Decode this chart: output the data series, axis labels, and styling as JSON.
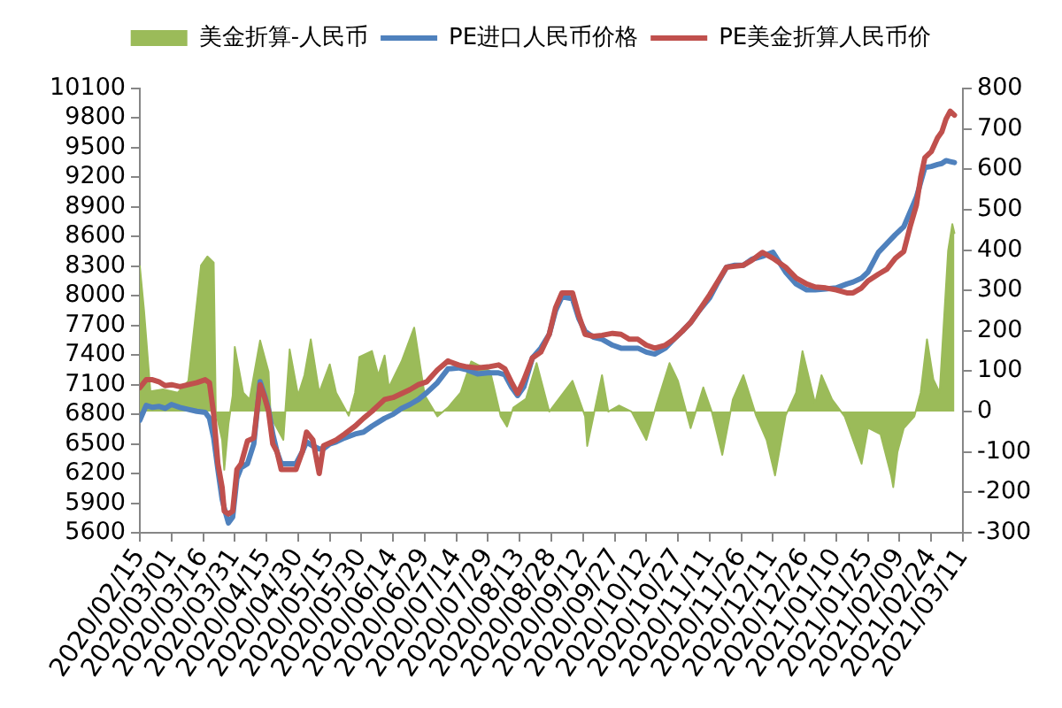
{
  "chart_data": {
    "type": "line",
    "legend": "top",
    "xlim": [
      "2020-02-15",
      "2021-03-11"
    ],
    "xticks": [
      {
        "value": "2020-02-15",
        "label": "2020/02/15"
      },
      {
        "value": "2020-03-01",
        "label": "2020/03/01"
      },
      {
        "value": "2020-03-16",
        "label": "2020/03/16"
      },
      {
        "value": "2020-03-31",
        "label": "2020/03/31"
      },
      {
        "value": "2020-04-15",
        "label": "2020/04/15"
      },
      {
        "value": "2020-04-30",
        "label": "2020/04/30"
      },
      {
        "value": "2020-05-15",
        "label": "2020/05/15"
      },
      {
        "value": "2020-05-30",
        "label": "2020/05/30"
      },
      {
        "value": "2020-06-14",
        "label": "2020/06/14"
      },
      {
        "value": "2020-06-29",
        "label": "2020/06/29"
      },
      {
        "value": "2020-07-14",
        "label": "2020/07/14"
      },
      {
        "value": "2020-07-29",
        "label": "2020/07/29"
      },
      {
        "value": "2020-08-13",
        "label": "2020/08/13"
      },
      {
        "value": "2020-08-28",
        "label": "2020/08/28"
      },
      {
        "value": "2020-09-12",
        "label": "2020/09/12"
      },
      {
        "value": "2020-09-27",
        "label": "2020/09/27"
      },
      {
        "value": "2020-10-12",
        "label": "2020/10/12"
      },
      {
        "value": "2020-10-27",
        "label": "2020/10/27"
      },
      {
        "value": "2020-11-11",
        "label": "2020/11/11"
      },
      {
        "value": "2020-11-26",
        "label": "2020/11/26"
      },
      {
        "value": "2020-12-11",
        "label": "2020/12/11"
      },
      {
        "value": "2020-12-26",
        "label": "2020/12/26"
      },
      {
        "value": "2021-01-10",
        "label": "2021/01/10"
      },
      {
        "value": "2021-01-25",
        "label": "2021/01/25"
      },
      {
        "value": "2021-02-09",
        "label": "2021/02/09"
      },
      {
        "value": "2021-02-24",
        "label": "2021/02/24"
      },
      {
        "value": "2021-03-11",
        "label": "2021/03/11"
      }
    ],
    "ylim": [
      5600,
      10100
    ],
    "yticks": [
      5600,
      5900,
      6200,
      6500,
      6800,
      7100,
      7400,
      7700,
      8000,
      8300,
      8600,
      8900,
      9200,
      9500,
      9800,
      10100
    ],
    "y2lim": [
      -300,
      800
    ],
    "y2ticks": [
      -300,
      -200,
      -100,
      0,
      100,
      200,
      300,
      400,
      500,
      600,
      700,
      800
    ],
    "x": [
      "2020-02-15",
      "2020-02-18",
      "2020-02-21",
      "2020-02-24",
      "2020-02-27",
      "2020-03-01",
      "2020-03-05",
      "2020-03-09",
      "2020-03-13",
      "2020-03-17",
      "2020-03-19",
      "2020-03-21",
      "2020-03-23",
      "2020-03-25",
      "2020-03-26",
      "2020-03-28",
      "2020-03-30",
      "2020-04-01",
      "2020-04-03",
      "2020-04-06",
      "2020-04-09",
      "2020-04-12",
      "2020-04-14",
      "2020-04-16",
      "2020-04-18",
      "2020-04-20",
      "2020-04-22",
      "2020-04-25",
      "2020-04-29",
      "2020-05-02",
      "2020-05-04",
      "2020-05-07",
      "2020-05-10",
      "2020-05-12",
      "2020-05-15",
      "2020-05-18",
      "2020-05-22",
      "2020-05-27",
      "2020-05-31",
      "2020-06-04",
      "2020-06-10",
      "2020-06-14",
      "2020-06-18",
      "2020-06-22",
      "2020-06-26",
      "2020-06-30",
      "2020-07-05",
      "2020-07-10",
      "2020-07-15",
      "2020-07-19",
      "2020-07-24",
      "2020-07-29",
      "2020-08-03",
      "2020-08-06",
      "2020-08-09",
      "2020-08-12",
      "2020-08-15",
      "2020-08-19",
      "2020-08-23",
      "2020-08-27",
      "2020-08-30",
      "2020-09-02",
      "2020-09-07",
      "2020-09-10",
      "2020-09-13",
      "2020-09-17",
      "2020-09-21",
      "2020-09-26",
      "2020-09-30",
      "2020-10-04",
      "2020-10-08",
      "2020-10-12",
      "2020-10-16",
      "2020-10-21",
      "2020-10-25",
      "2020-10-29",
      "2020-11-02",
      "2020-11-06",
      "2020-11-11",
      "2020-11-15",
      "2020-11-19",
      "2020-11-23",
      "2020-11-27",
      "2020-12-01",
      "2020-12-06",
      "2020-12-11",
      "2020-12-17",
      "2020-12-22",
      "2020-12-27",
      "2020-12-31",
      "2021-01-05",
      "2021-01-10",
      "2021-01-15",
      "2021-01-18",
      "2021-01-22",
      "2021-01-25",
      "2021-01-30",
      "2021-02-03",
      "2021-02-07",
      "2021-02-11",
      "2021-02-14",
      "2021-02-17",
      "2021-02-19",
      "2021-02-21",
      "2021-02-24",
      "2021-02-27",
      "2021-03-01",
      "2021-03-03",
      "2021-03-05",
      "2021-03-07"
    ],
    "series": [
      {
        "name": "美金折算-人民币",
        "type": "area",
        "axis": "y2",
        "color": "#9bbb59",
        "x": [
          "2020-02-15",
          "2020-02-17",
          "2020-02-20",
          "2020-02-26",
          "2020-03-04",
          "2020-03-09",
          "2020-03-15",
          "2020-03-18",
          "2020-03-21",
          "2020-03-22",
          "2020-03-25",
          "2020-03-26",
          "2020-03-28",
          "2020-03-30",
          "2020-03-31",
          "2020-04-04",
          "2020-04-07",
          "2020-04-12",
          "2020-04-16",
          "2020-04-17",
          "2020-04-20",
          "2020-04-23",
          "2020-04-26",
          "2020-04-30",
          "2020-05-03",
          "2020-05-06",
          "2020-05-10",
          "2020-05-15",
          "2020-05-18",
          "2020-05-24",
          "2020-05-27",
          "2020-05-29",
          "2020-06-04",
          "2020-06-07",
          "2020-06-10",
          "2020-06-12",
          "2020-06-18",
          "2020-06-24",
          "2020-06-29",
          "2020-07-05",
          "2020-07-10",
          "2020-07-16",
          "2020-07-21",
          "2020-07-30",
          "2020-08-04",
          "2020-08-07",
          "2020-08-10",
          "2020-08-16",
          "2020-08-21",
          "2020-08-27",
          "2020-09-07",
          "2020-09-13",
          "2020-09-14",
          "2020-09-21",
          "2020-09-24",
          "2020-09-29",
          "2020-10-05",
          "2020-10-12",
          "2020-10-17",
          "2020-10-23",
          "2020-10-27",
          "2020-11-02",
          "2020-11-08",
          "2020-11-12",
          "2020-11-17",
          "2020-11-22",
          "2020-11-27",
          "2020-12-03",
          "2020-12-08",
          "2020-12-12",
          "2020-12-17",
          "2020-12-22",
          "2020-12-25",
          "2020-12-31",
          "2021-01-03",
          "2021-01-08",
          "2021-01-14",
          "2021-01-19",
          "2021-01-22",
          "2021-01-25",
          "2021-01-31",
          "2021-02-05",
          "2021-02-06",
          "2021-02-08",
          "2021-02-11",
          "2021-02-16",
          "2021-02-19",
          "2021-02-22",
          "2021-02-25",
          "2021-02-28",
          "2021-03-04",
          "2021-03-06",
          "2021-03-07"
        ],
        "values": [
          360,
          250,
          50,
          55,
          47,
          76,
          362,
          384,
          369,
          0,
          -70,
          -144,
          -30,
          40,
          160,
          47,
          30,
          176,
          98,
          -12,
          -41,
          -70,
          154,
          40,
          90,
          179,
          47,
          117,
          47,
          -10,
          47,
          135,
          150,
          90,
          139,
          60,
          124,
          208,
          40,
          -12,
          10,
          47,
          124,
          100,
          -12,
          -37,
          10,
          32,
          120,
          0,
          76,
          -12,
          -85,
          90,
          0,
          15,
          0,
          -70,
          20,
          120,
          76,
          -41,
          60,
          0,
          -107,
          30,
          90,
          -10,
          -70,
          -158,
          -10,
          47,
          150,
          20,
          90,
          30,
          -12,
          -85,
          -129,
          -40,
          -56,
          -158,
          -187,
          -100,
          -41,
          -12,
          47,
          179,
          80,
          47,
          398,
          464,
          442
        ]
      },
      {
        "name": "PE进口人民币价格",
        "color": "#4f81bd",
        "values": [
          6740,
          6890,
          6870,
          6880,
          6860,
          6900,
          6870,
          6850,
          6830,
          6820,
          6760,
          6560,
          6240,
          5940,
          5850,
          5700,
          5760,
          6150,
          6260,
          6300,
          6500,
          7130,
          7000,
          6850,
          6600,
          6420,
          6300,
          6300,
          6300,
          6420,
          6520,
          6480,
          6450,
          6450,
          6500,
          6520,
          6560,
          6600,
          6620,
          6680,
          6760,
          6800,
          6860,
          6900,
          6950,
          7020,
          7120,
          7260,
          7270,
          7250,
          7210,
          7220,
          7220,
          7200,
          7080,
          6990,
          7080,
          7370,
          7470,
          7610,
          7850,
          7990,
          7970,
          7770,
          7640,
          7580,
          7560,
          7500,
          7470,
          7470,
          7470,
          7430,
          7410,
          7470,
          7560,
          7640,
          7730,
          7850,
          7980,
          8140,
          8290,
          8310,
          8310,
          8370,
          8400,
          8440,
          8240,
          8120,
          8060,
          8060,
          8070,
          8080,
          8120,
          8140,
          8180,
          8240,
          8440,
          8530,
          8620,
          8700,
          8850,
          9000,
          9150,
          9300,
          9310,
          9330,
          9340,
          9370,
          9360,
          9350
        ]
      },
      {
        "name": "PE美金折算人民币价",
        "color": "#c0504d",
        "values": [
          7070,
          7150,
          7150,
          7130,
          7090,
          7100,
          7080,
          7100,
          7120,
          7150,
          7120,
          6800,
          6300,
          6060,
          5820,
          5790,
          5820,
          6240,
          6300,
          6530,
          6560,
          7100,
          6980,
          6830,
          6500,
          6420,
          6240,
          6240,
          6240,
          6420,
          6620,
          6540,
          6200,
          6480,
          6510,
          6540,
          6600,
          6680,
          6760,
          6830,
          6950,
          6970,
          7010,
          7050,
          7100,
          7130,
          7250,
          7340,
          7300,
          7280,
          7270,
          7280,
          7300,
          7260,
          7130,
          7010,
          7150,
          7370,
          7430,
          7610,
          7880,
          8030,
          8030,
          7800,
          7610,
          7590,
          7600,
          7620,
          7610,
          7560,
          7560,
          7500,
          7470,
          7500,
          7560,
          7640,
          7730,
          7850,
          8010,
          8150,
          8290,
          8300,
          8310,
          8360,
          8440,
          8380,
          8290,
          8180,
          8120,
          8090,
          8080,
          8060,
          8030,
          8030,
          8080,
          8150,
          8220,
          8270,
          8380,
          8450,
          8700,
          8920,
          9200,
          9400,
          9460,
          9600,
          9660,
          9790,
          9870,
          9830
        ]
      }
    ]
  }
}
